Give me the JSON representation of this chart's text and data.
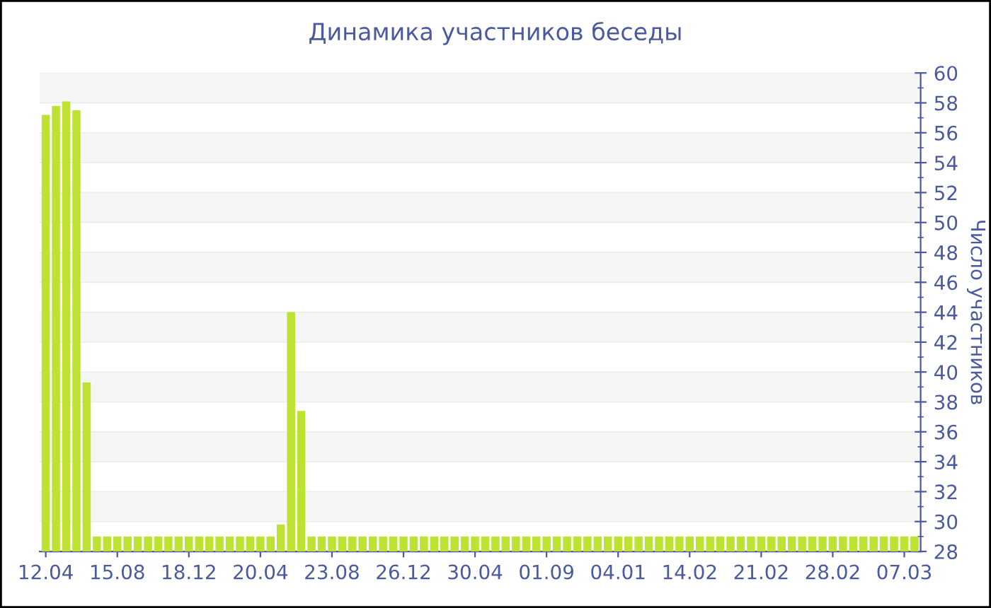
{
  "chart_data": {
    "type": "bar",
    "title": "Динамика участников беседы",
    "ylabel": "Число участников",
    "categories": [
      "12.04",
      null,
      null,
      null,
      null,
      null,
      null,
      "15.08",
      null,
      null,
      null,
      null,
      null,
      null,
      "18.12",
      null,
      null,
      null,
      null,
      null,
      null,
      "20.04",
      null,
      null,
      null,
      null,
      null,
      null,
      "23.08",
      null,
      null,
      null,
      null,
      null,
      null,
      "26.12",
      null,
      null,
      null,
      null,
      null,
      null,
      "30.04",
      null,
      null,
      null,
      null,
      null,
      null,
      "01.09",
      null,
      null,
      null,
      null,
      null,
      null,
      "04.01",
      null,
      null,
      null,
      null,
      null,
      null,
      "14.02",
      null,
      null,
      null,
      null,
      null,
      null,
      "21.02",
      null,
      null,
      null,
      null,
      null,
      null,
      "28.02",
      null,
      null,
      null,
      null,
      null,
      null,
      "07.03",
      null
    ],
    "values": [
      57.2,
      57.8,
      58.1,
      57.5,
      39.3,
      29,
      29,
      29,
      29,
      29,
      29,
      29,
      29,
      29,
      29,
      29,
      29,
      29,
      29,
      29,
      29,
      29,
      29,
      29.8,
      44,
      37.4,
      29,
      29,
      29,
      29,
      29,
      29,
      29,
      29,
      29,
      29,
      29,
      29,
      29,
      29,
      29,
      29,
      29,
      29,
      29,
      29,
      29,
      29,
      29,
      29,
      29,
      29,
      29,
      29,
      29,
      29,
      29,
      29,
      29,
      29,
      29,
      29,
      29,
      29,
      29,
      29,
      29,
      29,
      29,
      29,
      29,
      29,
      29,
      29,
      29,
      29,
      29,
      29,
      29,
      29,
      29,
      29,
      29,
      29,
      29,
      29
    ],
    "color": "#bee233",
    "ylim": [
      28,
      60
    ],
    "yticks": [
      28,
      30,
      32,
      34,
      36,
      38,
      40,
      42,
      44,
      46,
      48,
      50,
      52,
      54,
      56,
      58,
      60
    ],
    "grid": "y",
    "legend": false
  }
}
